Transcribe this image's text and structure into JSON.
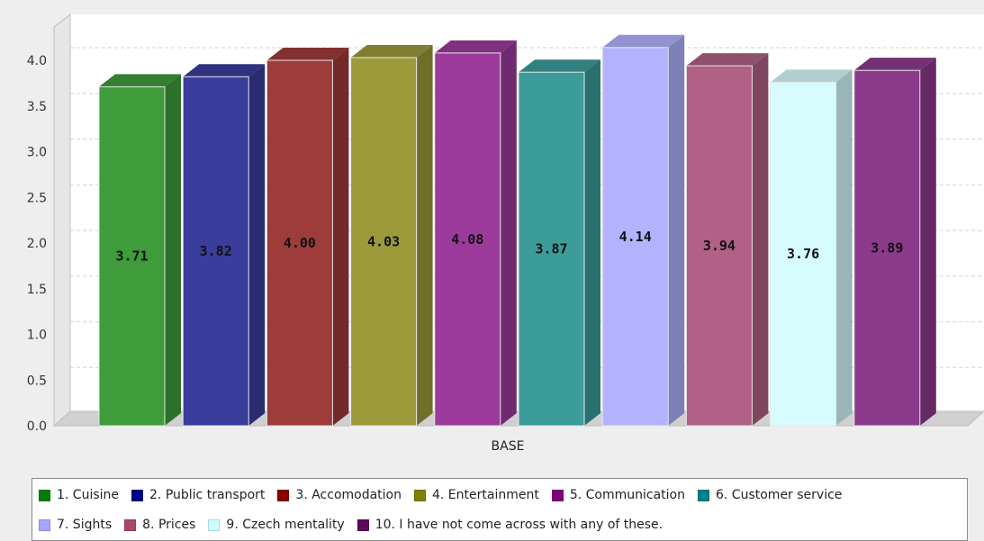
{
  "chart_data": {
    "type": "bar",
    "categories": [
      "BASE"
    ],
    "ylim": [
      0,
      4.0
    ],
    "yticks": [
      "0.0",
      "0.5",
      "1.0",
      "1.5",
      "2.0",
      "2.5",
      "3.0",
      "3.5",
      "4.0"
    ],
    "grid": true,
    "legend_position": "bottom",
    "series": [
      {
        "name": "1. Cuisine",
        "value": 3.71,
        "label": "3.71",
        "color": "#3e9c3a"
      },
      {
        "name": "2. Public transport",
        "value": 3.82,
        "label": "3.82",
        "color": "#3a3d9c"
      },
      {
        "name": "3. Accomodation",
        "value": 4.0,
        "label": "4.00",
        "color": "#9e3b3b"
      },
      {
        "name": "4. Entertainment",
        "value": 4.03,
        "label": "4.03",
        "color": "#9c9a3b"
      },
      {
        "name": "5. Communication",
        "value": 4.08,
        "label": "4.08",
        "color": "#9c3b9c"
      },
      {
        "name": "6. Customer service",
        "value": 3.87,
        "label": "3.87",
        "color": "#3b9c9a"
      },
      {
        "name": "7. Sights",
        "value": 4.14,
        "label": "4.14",
        "color": "#b2b2ff"
      },
      {
        "name": "8. Prices",
        "value": 3.94,
        "label": "3.94",
        "color": "#b06185"
      },
      {
        "name": "9. Czech mentality",
        "value": 3.76,
        "label": "3.76",
        "color": "#d6fcff"
      },
      {
        "name": "10. I have not come across with any of these.",
        "value": 3.89,
        "label": "3.89",
        "color": "#8c3b8c"
      }
    ],
    "legend_colors": [
      "#008000",
      "#00008b",
      "#8b0000",
      "#808000",
      "#800080",
      "#008080",
      "#a6a6ff",
      "#a8466c",
      "#ccffff",
      "#5c0a5c"
    ]
  }
}
